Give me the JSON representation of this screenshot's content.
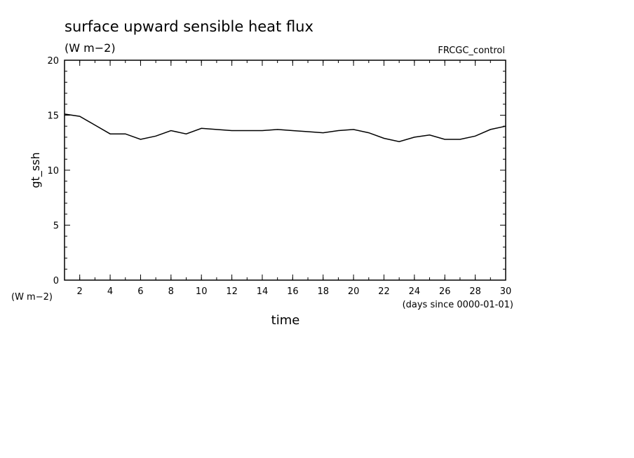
{
  "chart_data": {
    "type": "line",
    "title": "surface upward sensible heat flux",
    "units": "(W m−2)",
    "y_units_corner": "(W m−2)",
    "experiment": "FRCGC_control",
    "ylabel": "gt_ssh",
    "xlabel": "time",
    "x_units": "(days since 0000-01-01)",
    "xlim": [
      1,
      30
    ],
    "ylim": [
      0,
      20
    ],
    "x_ticks": [
      2,
      4,
      6,
      8,
      10,
      12,
      14,
      16,
      18,
      20,
      22,
      24,
      26,
      28,
      30
    ],
    "y_ticks": [
      0,
      5,
      10,
      15,
      20
    ],
    "grid": false,
    "series": [
      {
        "x": [
          1,
          2,
          3,
          4,
          5,
          6,
          7,
          8,
          9,
          10,
          11,
          12,
          13,
          14,
          15,
          16,
          17,
          18,
          19,
          20,
          21,
          22,
          23,
          24,
          25,
          26,
          27,
          28,
          29,
          30
        ],
        "values": [
          15.1,
          14.9,
          14.1,
          13.3,
          13.3,
          12.8,
          13.1,
          13.6,
          13.3,
          13.8,
          13.7,
          13.6,
          13.6,
          13.6,
          13.7,
          13.6,
          13.5,
          13.4,
          13.6,
          13.7,
          13.4,
          12.9,
          12.6,
          13.0,
          13.2,
          12.8,
          12.8,
          13.1,
          13.7,
          14.0
        ]
      }
    ]
  }
}
